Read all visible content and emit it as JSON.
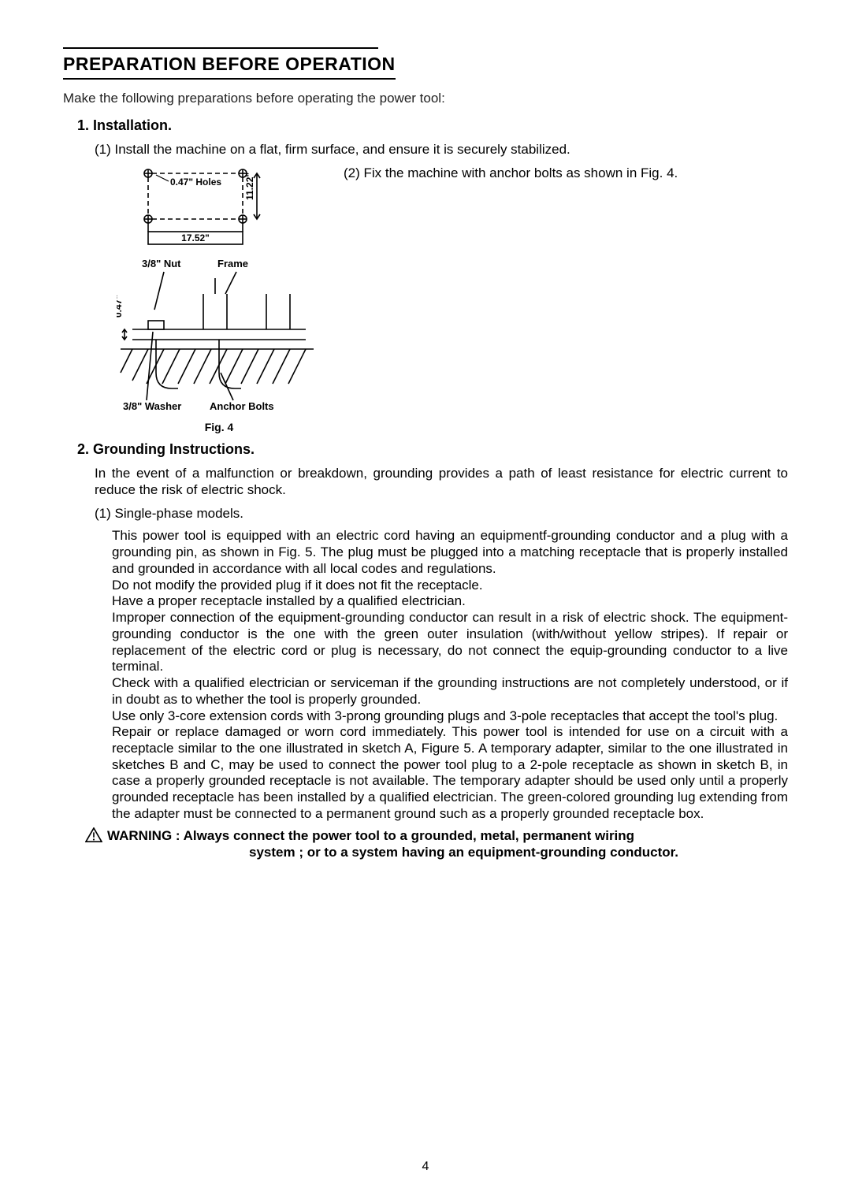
{
  "page": {
    "title": "PREPARATION BEFORE OPERATION",
    "intro": "Make the following preparations before operating the power tool:",
    "page_number": "4"
  },
  "section1": {
    "head": "1. Installation.",
    "item1": "(1) Install the machine on a flat, firm surface, and ensure it is securely stabilized.",
    "item2": "(2) Fix the machine with anchor bolts as shown in Fig. 4.",
    "fig_caption": "Fig.   4",
    "diagram": {
      "holes_label": "0.47\" Holes",
      "height_label": "11.22\"",
      "width_label": "17.52\"",
      "nut_label": "3/8\" Nut",
      "frame_label": "Frame",
      "gap_label": "0.47\"",
      "washer_label": "3/8\" Washer",
      "anchor_label": "Anchor Bolts"
    }
  },
  "section2": {
    "head": "2. Grounding Instructions.",
    "para1": "In the event of a malfunction or breakdown, grounding provides a path of least resistance for electric current to reduce the risk of electric shock.",
    "sub1": "(1) Single-phase models.",
    "body": "This power tool is equipped with an electric cord having an equipmentf-grounding conductor and a plug with a grounding pin, as shown in Fig. 5.  The plug must be plugged into a matching receptacle that is properly installed and grounded in accordance with all local codes and regulations.\nDo not modify the provided plug if it does not fit the receptacle.\nHave a proper receptacle installed by a qualified electrician.\nImproper connection of the equipment-grounding conductor can result in a risk of electric shock.   The equipment-grounding conductor is the one with the green outer insulation (with/without yellow stripes).  If repair or replacement of the electric cord or plug is necessary, do not connect the equip-grounding conductor to a live terminal.\nCheck with a qualified electrician or serviceman if the grounding instructions are not completely understood, or if in doubt as to whether the tool is properly grounded.\nUse only 3-core extension cords with 3-prong grounding plugs and 3-pole receptacles that accept the tool's plug.\nRepair or replace damaged or worn cord immediately.  This power tool is intended for use on a circuit with a receptacle similar to the one illustrated in sketch A, Figure 5.  A temporary adapter, similar to the one illustrated in sketches B and C, may be used to connect the power tool plug to a 2-pole receptacle as shown in sketch B, in case a properly grounded receptacle is not available. The temporary adapter should be used only until a properly grounded receptacle has been installed by a qualified electrician.   The green-colored grounding lug extending from the adapter must be connected to a permanent ground such as a properly grounded receptacle box."
  },
  "warning": {
    "label": "WARNING :",
    "line1": "Always connect the power tool to a grounded, metal, permanent wiring",
    "line2": "system ; or to a system having an equipment-grounding conductor."
  },
  "style": {
    "text_color": "#000000",
    "bg_color": "#ffffff",
    "line_color": "#000000"
  }
}
